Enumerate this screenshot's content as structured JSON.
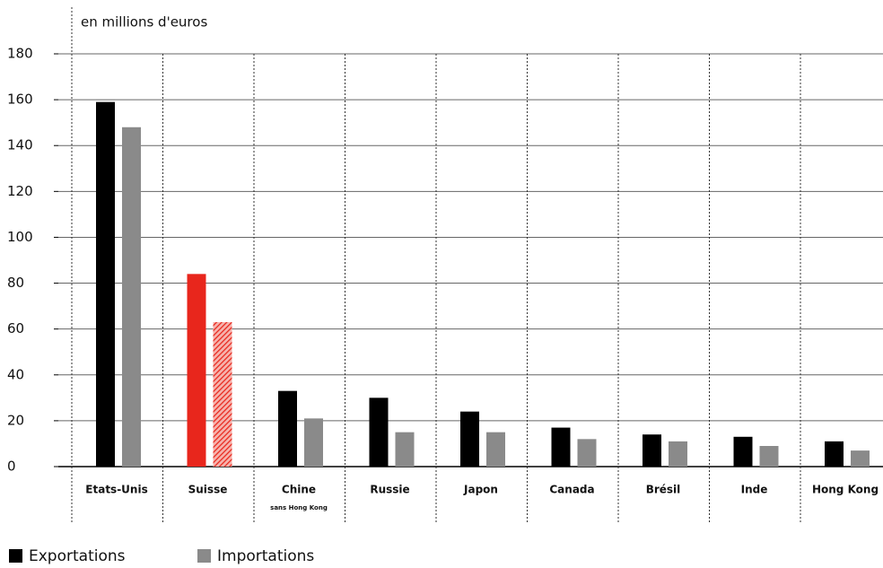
{
  "chart_data": {
    "type": "bar",
    "title": "en millions d'euros",
    "categories": [
      "Etats-Unis",
      "Suisse",
      "Chine",
      "Russie",
      "Japon",
      "Canada",
      "Brésil",
      "Inde",
      "Hong Kong"
    ],
    "category_subtitles": [
      null,
      null,
      "sans Hong Kong",
      null,
      null,
      null,
      null,
      null,
      null
    ],
    "series": [
      {
        "name": "Exportations",
        "color": "#000000",
        "colors": [
          "#000000",
          "#e8261c",
          "#000000",
          "#000000",
          "#000000",
          "#000000",
          "#000000",
          "#000000",
          "#000000"
        ],
        "values": [
          159,
          84,
          33,
          30,
          24,
          17,
          14,
          13,
          11
        ]
      },
      {
        "name": "Importations",
        "color": "#8a8a8a",
        "colors": [
          "#8a8a8a",
          "#e8261c",
          "#8a8a8a",
          "#8a8a8a",
          "#8a8a8a",
          "#8a8a8a",
          "#8a8a8a",
          "#8a8a8a",
          "#8a8a8a"
        ],
        "values": [
          148,
          63,
          21,
          15,
          15,
          12,
          11,
          9,
          7
        ]
      }
    ],
    "ylim": [
      0,
      180
    ],
    "yticks": [
      0,
      20,
      40,
      60,
      80,
      100,
      120,
      140,
      160,
      180
    ],
    "grid": true,
    "legend": "bottom-left"
  }
}
